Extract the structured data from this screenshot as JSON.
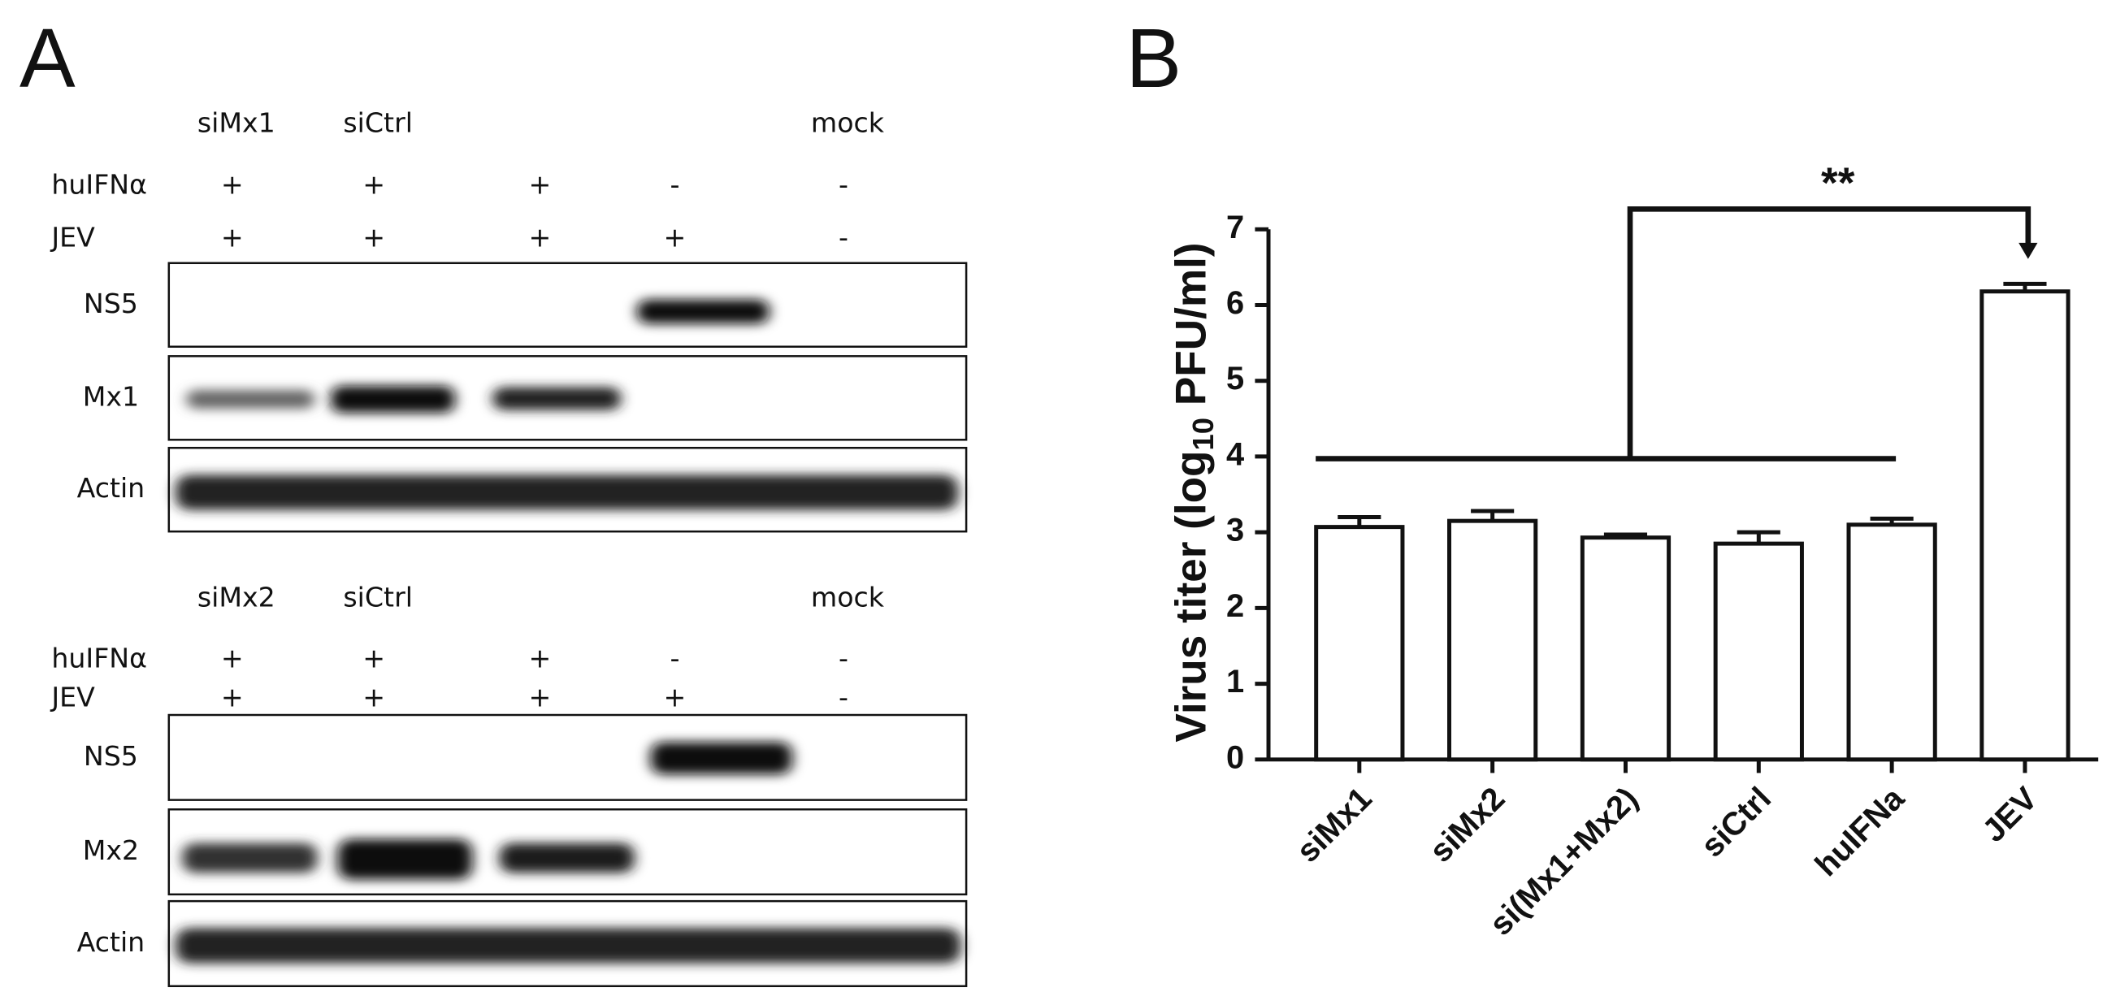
{
  "panel_labels": [
    "A",
    "B"
  ],
  "panel_a": {
    "blots": [
      {
        "lane_labels": [
          "siMx1",
          "siCtrl",
          null,
          null,
          "mock"
        ],
        "treatments": [
          {
            "name": "huIFNα",
            "signs": [
              "+",
              "+",
              "+",
              "-",
              "-"
            ]
          },
          {
            "name": "JEV",
            "signs": [
              "+",
              "+",
              "+",
              "+",
              "-"
            ]
          }
        ],
        "rows": [
          "NS5",
          "Mx1",
          "Actin"
        ]
      },
      {
        "lane_labels": [
          "siMx2",
          "siCtrl",
          null,
          null,
          "mock"
        ],
        "treatments": [
          {
            "name": "huIFNα",
            "signs": [
              "+",
              "+",
              "+",
              "-",
              "-"
            ]
          },
          {
            "name": "JEV",
            "signs": [
              "+",
              "+",
              "+",
              "+",
              "-"
            ]
          }
        ],
        "rows": [
          "NS5",
          "Mx2",
          "Actin"
        ]
      }
    ]
  },
  "chart_data": {
    "type": "bar",
    "y_label": [
      "Virus titer (log",
      "10",
      " PFU/ml)"
    ],
    "categories": [
      "siMx1",
      "siMx2",
      "si(Mx1+Mx2)",
      "siCtrl",
      "huIFNa",
      "JEV"
    ],
    "values": [
      3.07,
      3.15,
      2.93,
      2.85,
      3.1,
      6.18
    ],
    "errors": [
      0.13,
      0.13,
      0.04,
      0.15,
      0.08,
      0.1
    ],
    "color": "#ffffff",
    "ylim": [
      0,
      7
    ],
    "yticks": [
      0,
      1,
      2,
      3,
      4,
      5,
      6,
      7
    ],
    "annotation": "**"
  }
}
